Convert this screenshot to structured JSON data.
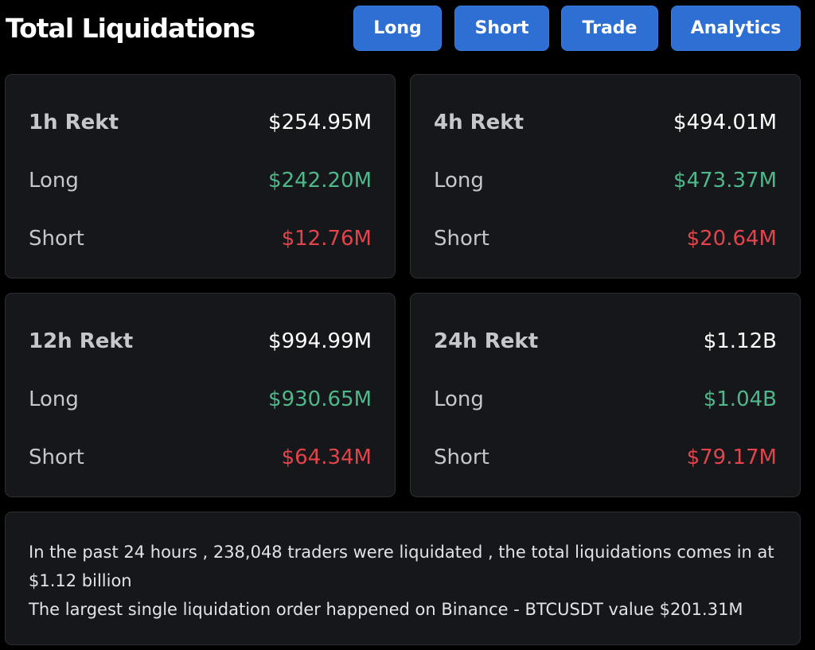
{
  "header": {
    "title": "Total Liquidations",
    "buttons": {
      "long": "Long",
      "short": "Short",
      "trade": "Trade",
      "analytics": "Analytics"
    }
  },
  "cards": {
    "h1": {
      "title": "1h Rekt",
      "total": "$254.95M",
      "long_label": "Long",
      "long": "$242.20M",
      "short_label": "Short",
      "short": "$12.76M"
    },
    "h4": {
      "title": "4h Rekt",
      "total": "$494.01M",
      "long_label": "Long",
      "long": "$473.37M",
      "short_label": "Short",
      "short": "$20.64M"
    },
    "h12": {
      "title": "12h Rekt",
      "total": "$994.99M",
      "long_label": "Long",
      "long": "$930.65M",
      "short_label": "Short",
      "short": "$64.34M"
    },
    "h24": {
      "title": "24h Rekt",
      "total": "$1.12B",
      "long_label": "Long",
      "long": "$1.04B",
      "short_label": "Short",
      "short": "$79.17M"
    }
  },
  "summary": {
    "line1": "In the past 24 hours , 238,048 traders were liquidated , the total liquidations comes in at $1.12 billion",
    "line2": "The largest single liquidation order happened on Binance - BTCUSDT value $201.31M"
  },
  "colors": {
    "background": "#000000",
    "card": "#16171a",
    "button": "#2d6fd2",
    "long": "#4fb88a",
    "short": "#e2444b"
  }
}
